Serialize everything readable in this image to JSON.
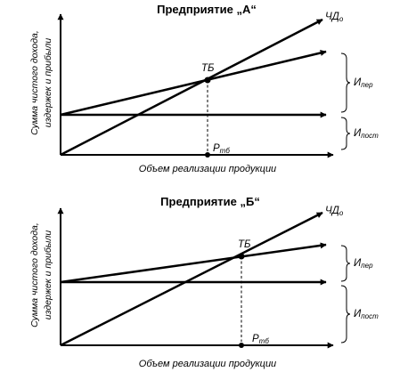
{
  "panels": [
    {
      "title": "Предприятие „А“",
      "y_label_line1": "Сумма чистого дохода,",
      "y_label_line2": "издержек и прибыли",
      "x_label": "Объем реализации продукции",
      "line_label_main": "ЧД",
      "line_label_sub": "о",
      "point_label": "ТБ",
      "p_label_main": "Р",
      "p_label_sub": "тб",
      "var_cost_main": "И",
      "var_cost_sub": "пер",
      "fixed_cost_main": "И",
      "fixed_cost_sub": "пост"
    },
    {
      "title": "Предприятие „Б“",
      "y_label_line1": "Сумма чистого дохода,",
      "y_label_line2": "издержек и прибыли",
      "x_label": "Объем реализации продукции",
      "line_label_main": "ЧД",
      "line_label_sub": "о",
      "point_label": "ТБ",
      "p_label_main": "Р",
      "p_label_sub": "тб",
      "var_cost_main": "И",
      "var_cost_sub": "пер",
      "fixed_cost_main": "И",
      "fixed_cost_sub": "пост"
    }
  ]
}
